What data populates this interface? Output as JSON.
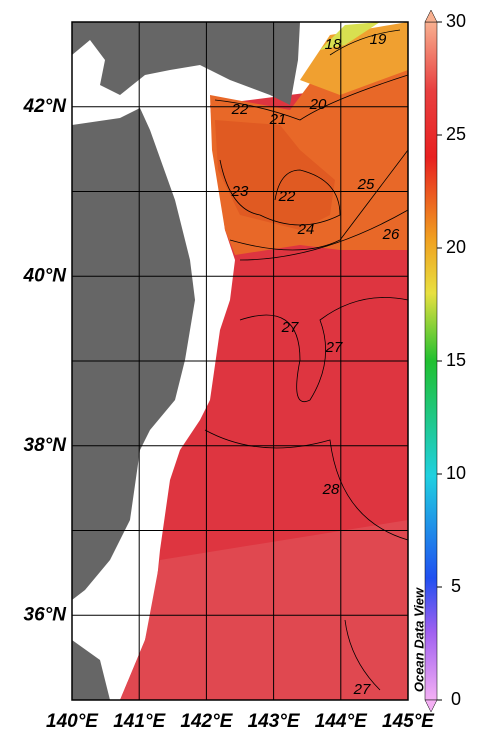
{
  "chart_data": {
    "type": "contour-map",
    "xlim": [
      140,
      145
    ],
    "ylim": [
      35,
      43
    ],
    "xticks": [
      {
        "value": 140,
        "label": "140°E"
      },
      {
        "value": 141,
        "label": "141°E"
      },
      {
        "value": 142,
        "label": "142°E"
      },
      {
        "value": 143,
        "label": "143°E"
      },
      {
        "value": 144,
        "label": "144°E"
      },
      {
        "value": 145,
        "label": "145°E"
      }
    ],
    "yticks": [
      {
        "value": 36,
        "label": "36°N"
      },
      {
        "value": 38,
        "label": "38°N"
      },
      {
        "value": 40,
        "label": "40°N"
      },
      {
        "value": 42,
        "label": "42°N"
      }
    ],
    "ygrid": [
      36,
      37,
      38,
      39,
      40,
      41,
      42
    ],
    "contour_labels": [
      18,
      19,
      22,
      21,
      20,
      23,
      22,
      25,
      24,
      26,
      27,
      27,
      28,
      27
    ],
    "colorbar": {
      "lim": [
        0,
        30
      ],
      "ticks": [
        0,
        5,
        10,
        15,
        20,
        25,
        30
      ]
    },
    "watermark": "Ocean Data View",
    "land_color": "#666666"
  }
}
